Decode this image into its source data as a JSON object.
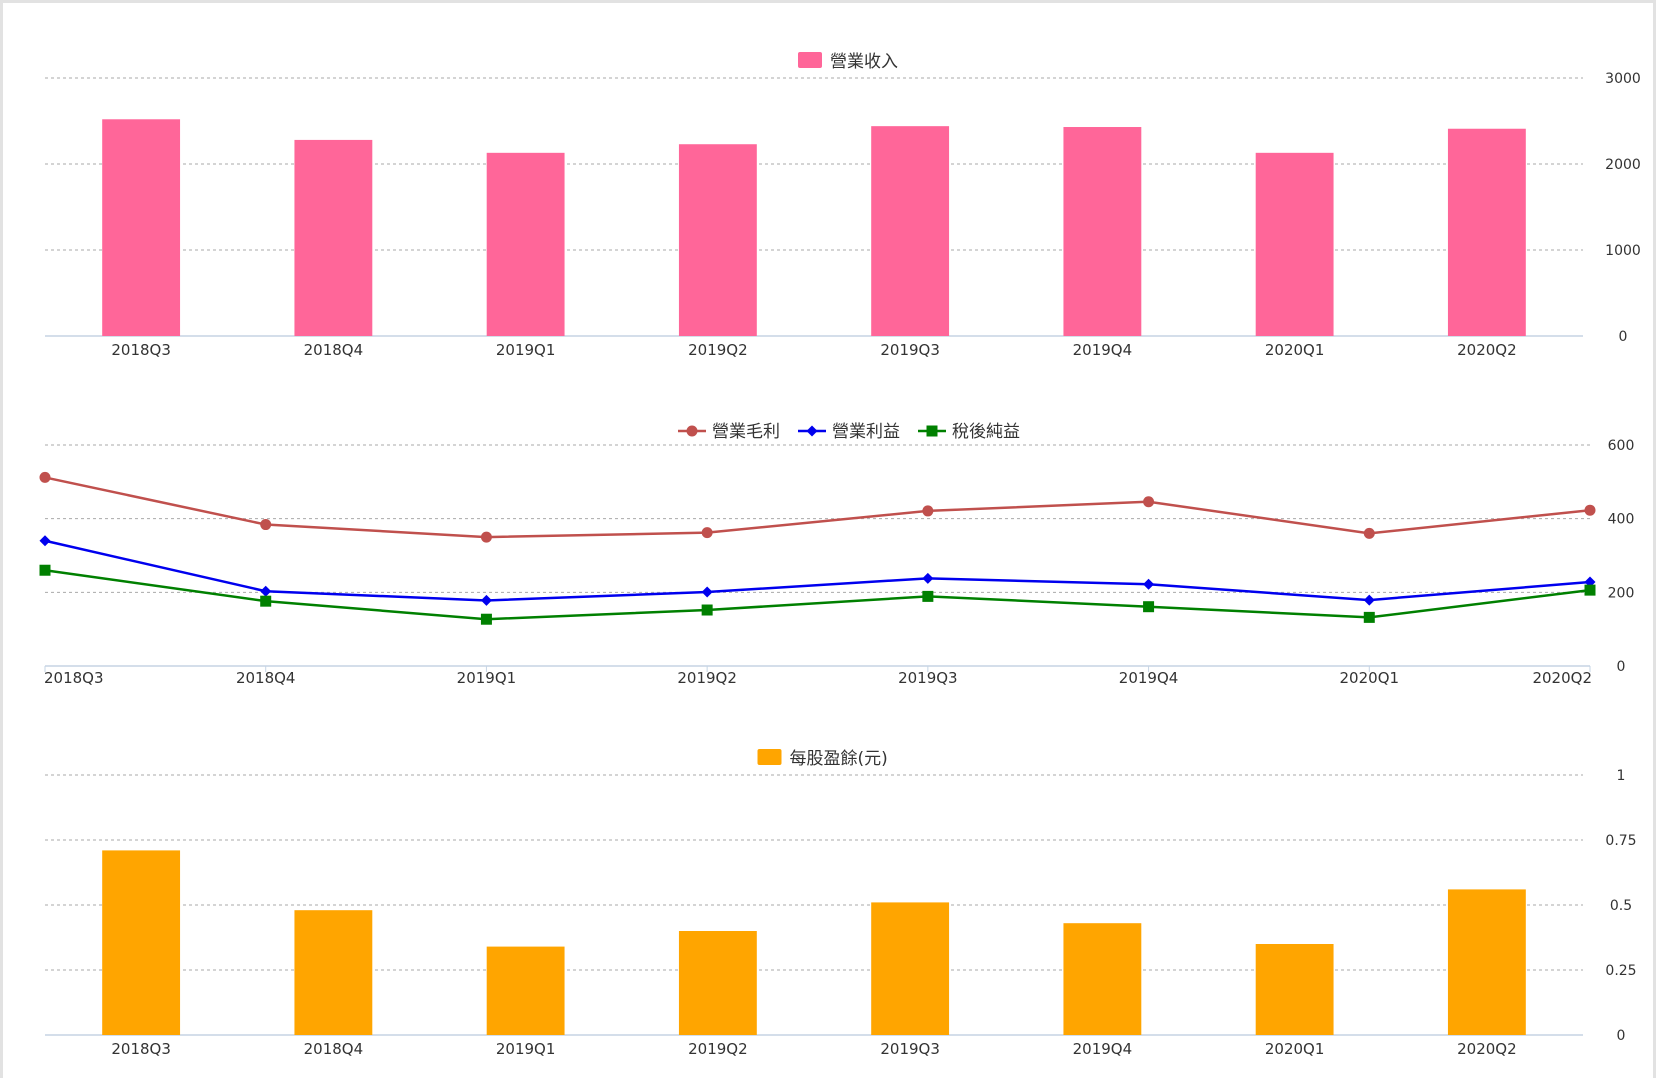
{
  "chart_data": [
    {
      "type": "bar",
      "categories": [
        "2018Q3",
        "2018Q4",
        "2019Q1",
        "2019Q2",
        "2019Q3",
        "2019Q4",
        "2020Q1",
        "2020Q2"
      ],
      "series": [
        {
          "name": "營業收入",
          "values": [
            2520,
            2280,
            2130,
            2230,
            2440,
            2430,
            2130,
            2410
          ]
        }
      ],
      "yticks": [
        "0",
        "1000",
        "2000",
        "3000"
      ],
      "ylim": [
        0,
        3000
      ],
      "grid": true,
      "legend_position": "top-center",
      "axis_position": "right",
      "colors": [
        "#ff6699"
      ]
    },
    {
      "type": "line",
      "categories": [
        "2018Q3",
        "2018Q4",
        "2019Q1",
        "2019Q2",
        "2019Q3",
        "2019Q4",
        "2020Q1",
        "2020Q2"
      ],
      "series": [
        {
          "name": "營業毛利",
          "values": [
            512,
            384,
            350,
            362,
            421,
            446,
            360,
            423
          ],
          "marker": "circle"
        },
        {
          "name": "營業利益",
          "values": [
            340,
            203,
            178,
            201,
            238,
            222,
            179,
            228
          ],
          "marker": "diamond"
        },
        {
          "name": "稅後純益",
          "values": [
            260,
            176,
            127,
            152,
            189,
            161,
            132,
            206
          ],
          "marker": "square"
        }
      ],
      "yticks": [
        "0",
        "200",
        "400",
        "600"
      ],
      "ylim": [
        0,
        600
      ],
      "grid": true,
      "legend_position": "top-center",
      "axis_position": "right",
      "colors": [
        "#c0504d",
        "#0000ee",
        "#008000"
      ]
    },
    {
      "type": "bar",
      "categories": [
        "2018Q3",
        "2018Q4",
        "2019Q1",
        "2019Q2",
        "2019Q3",
        "2019Q4",
        "2020Q1",
        "2020Q2"
      ],
      "series": [
        {
          "name": "每股盈餘(元)",
          "values": [
            0.71,
            0.48,
            0.34,
            0.4,
            0.51,
            0.43,
            0.35,
            0.56
          ]
        }
      ],
      "yticks": [
        "0",
        "0.25",
        "0.5",
        "0.75",
        "1"
      ],
      "ylim": [
        0,
        1
      ],
      "grid": true,
      "legend_position": "top-center",
      "axis_position": "right",
      "colors": [
        "#ffa500"
      ]
    }
  ]
}
